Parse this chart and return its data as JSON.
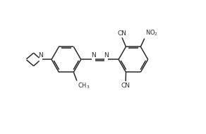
{
  "background_color": "#ffffff",
  "line_color": "#2a2a2a",
  "line_width": 1.1,
  "figsize": [
    2.92,
    1.9
  ],
  "dpi": 100,
  "xlim": [
    0,
    9.5
  ],
  "ylim": [
    0,
    6.2
  ]
}
